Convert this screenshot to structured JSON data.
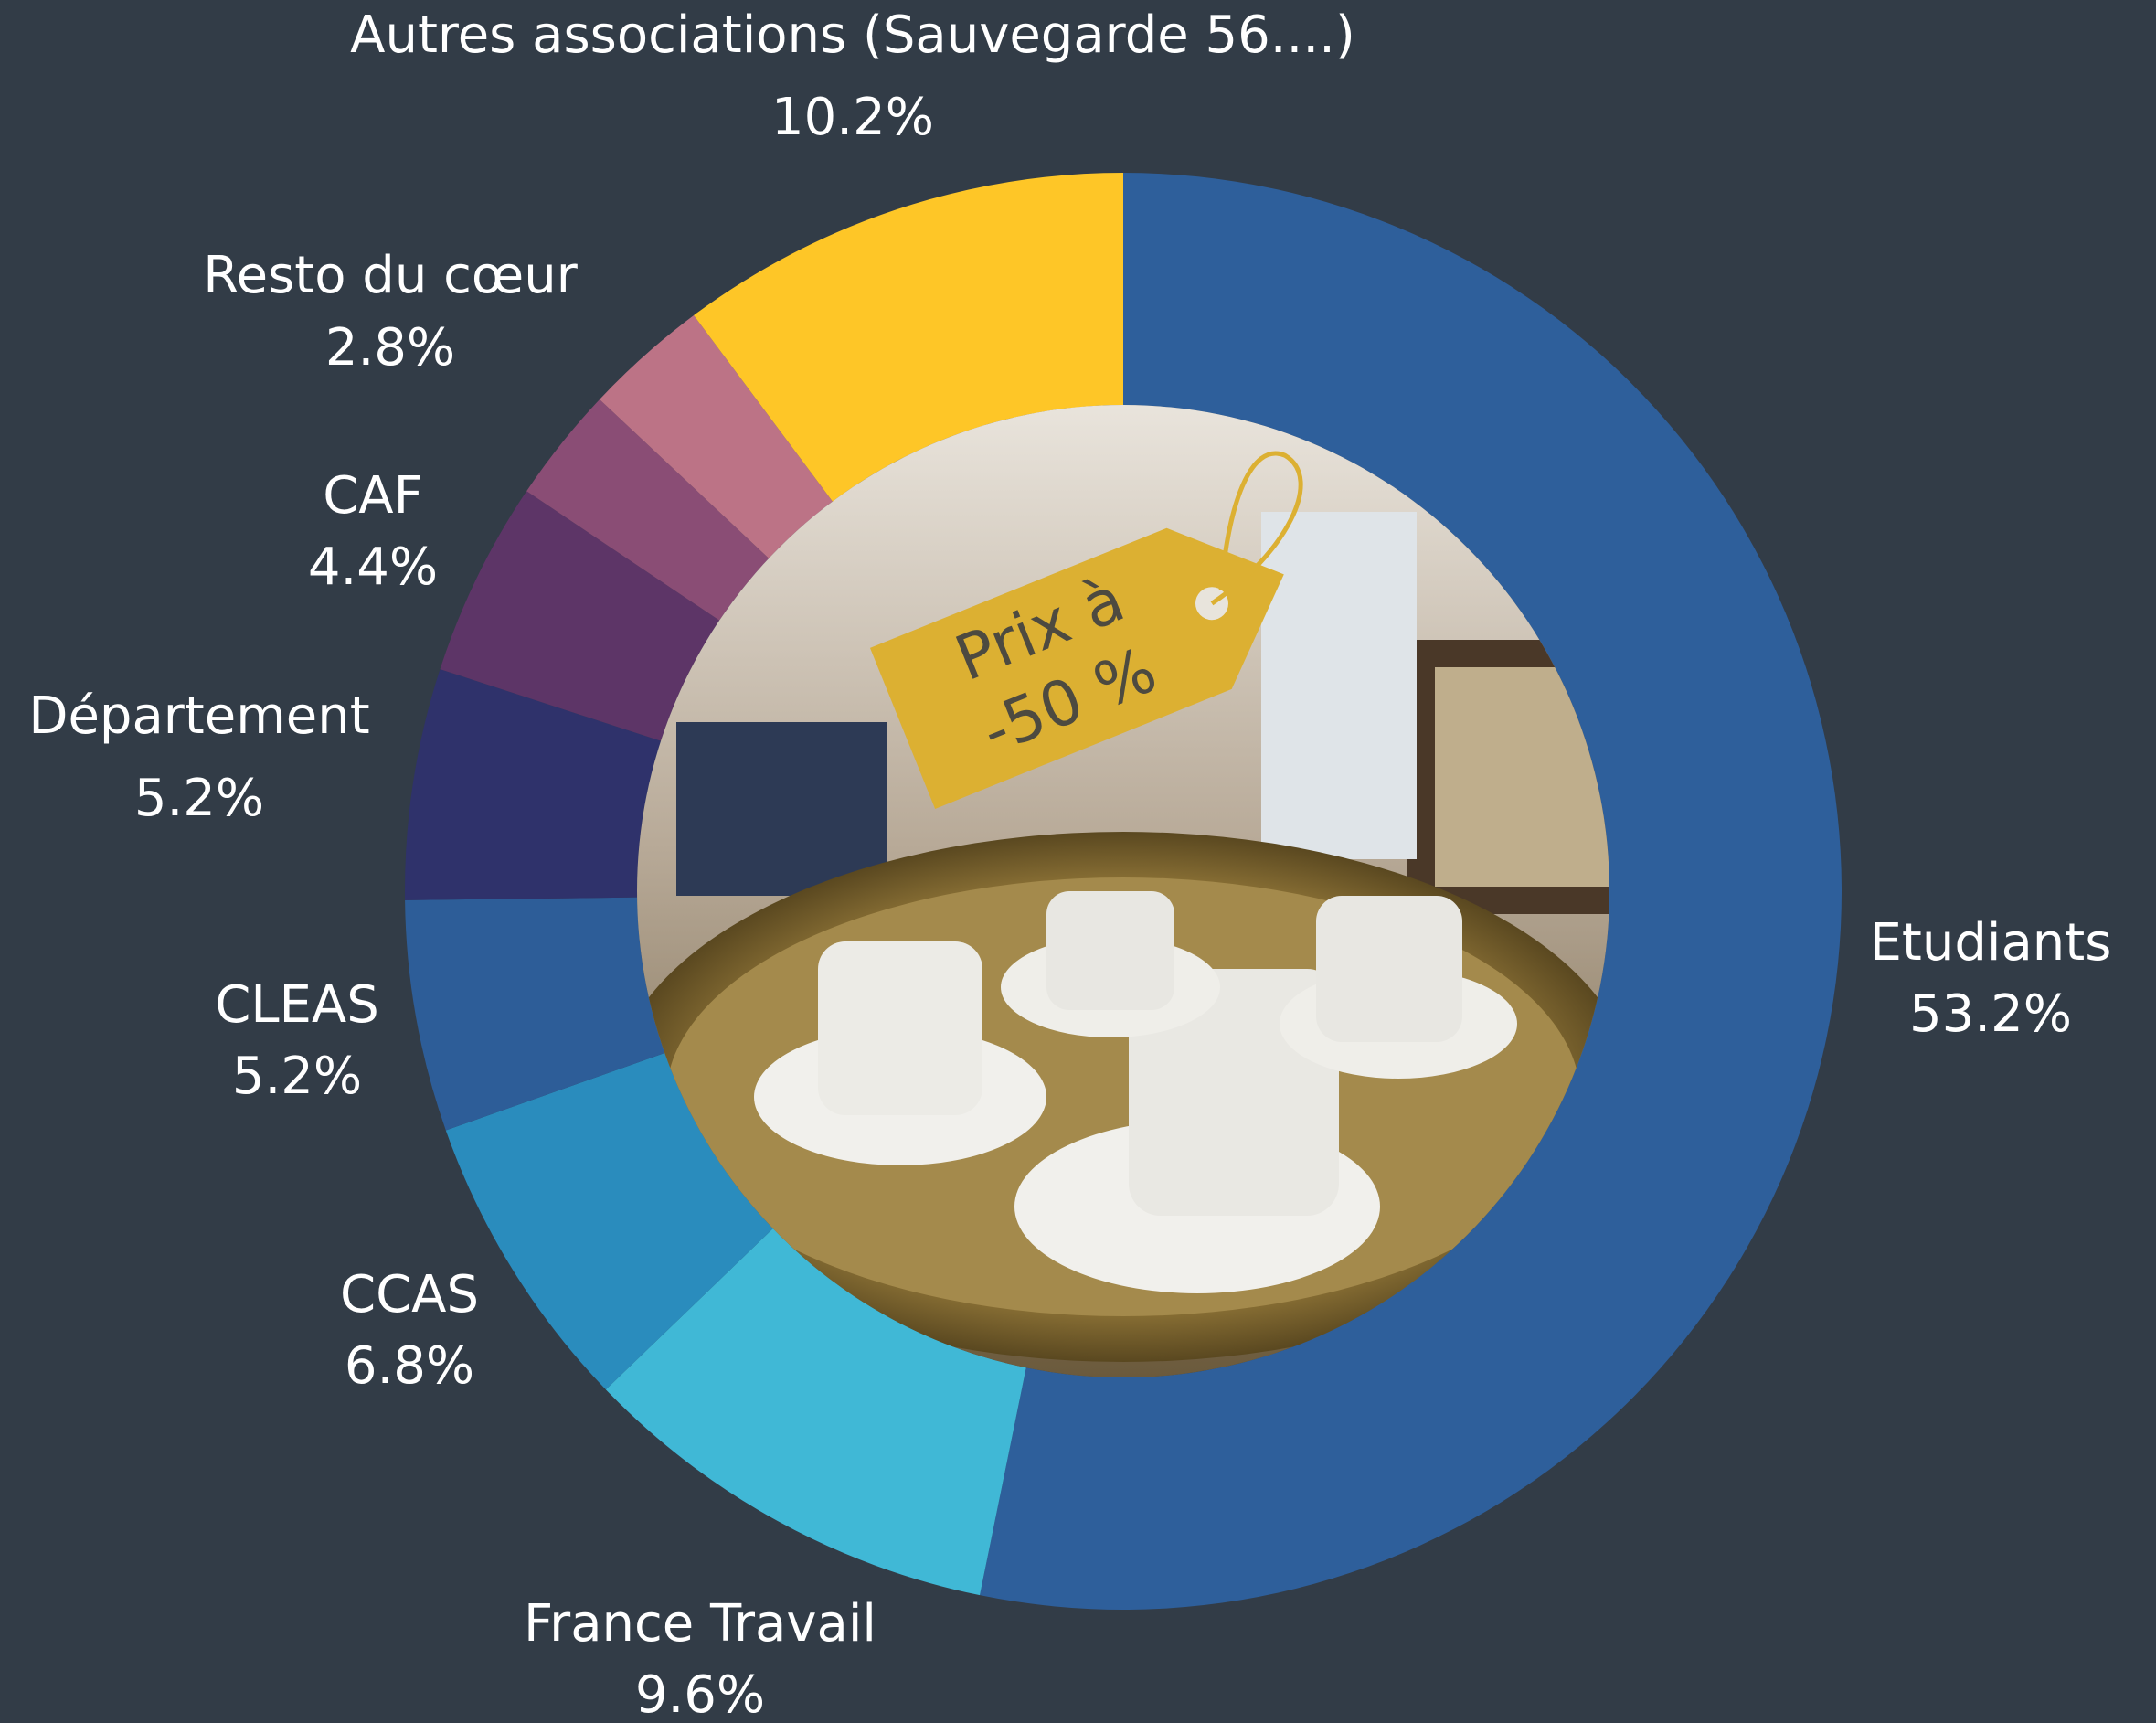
{
  "chart_data": {
    "type": "donut",
    "categories": [
      "Etudiants",
      "France Travail",
      "CCAS",
      "CLEAS",
      "Département",
      "CAF",
      null,
      "Resto du cœur",
      "Autres associations (Sauvegarde 56....)"
    ],
    "values": [
      53.2,
      9.6,
      6.8,
      5.2,
      5.2,
      4.4,
      2.6,
      2.8,
      10.2
    ],
    "value_labels": [
      "53.2%",
      "9.6%",
      "6.8%",
      "5.2%",
      "5.2%",
      "4.4%",
      null,
      "2.8%",
      "10.2%"
    ],
    "colors": [
      "#2e5f9b",
      "#40b8d6",
      "#2a8cbd",
      "#2d5d98",
      "#2f326b",
      "#5d3567",
      "#8a4d75",
      "#bc7386",
      "#fec627"
    ],
    "annotation": [
      "Prix à",
      "-50 %"
    ]
  }
}
